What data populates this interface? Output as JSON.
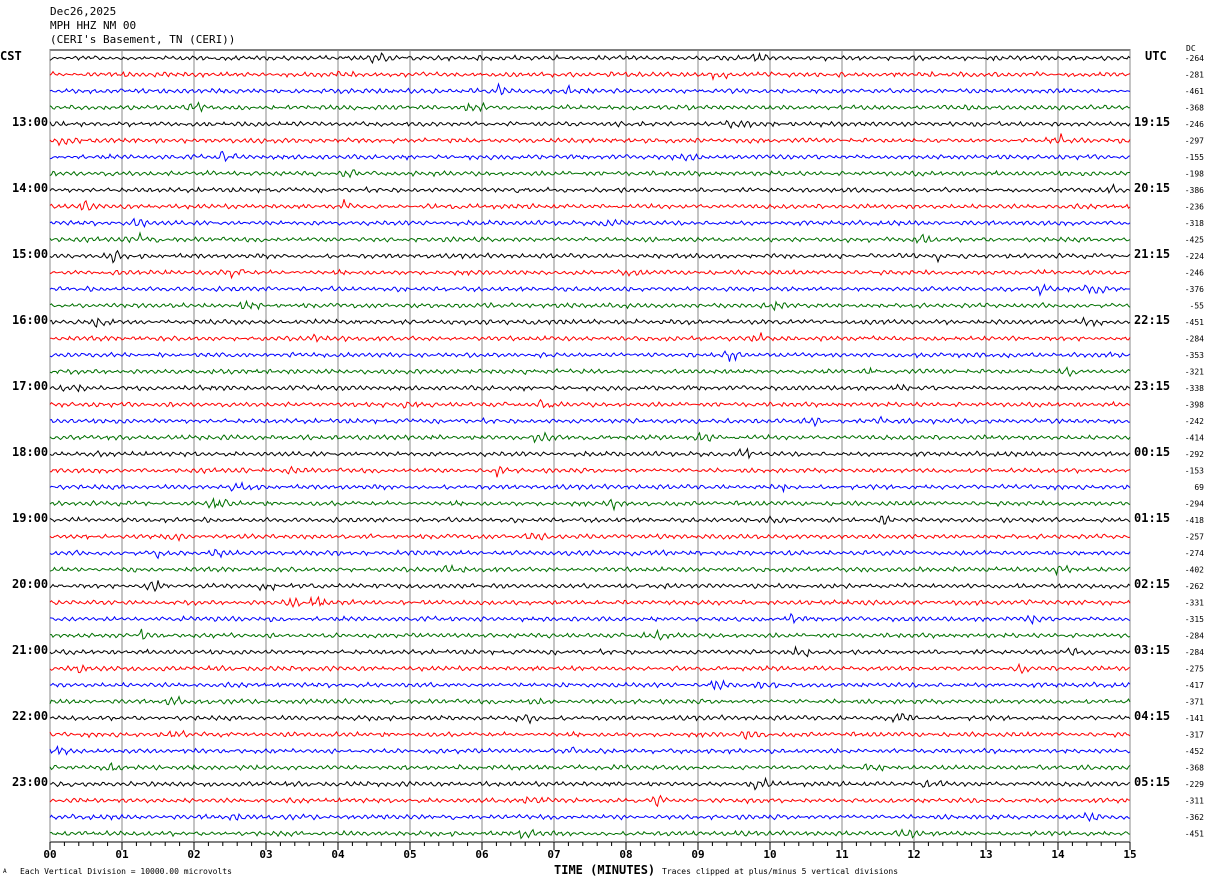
{
  "header": {
    "date": "Dec26,2025",
    "station": "MPH HHZ NM 00",
    "location": "(CERI's Basement, TN (CERI))"
  },
  "left_tz": "CST",
  "right_tz": "UTC",
  "dc_label": "DC",
  "footer": {
    "scale": "Each Vertical Division = 10000.00 microvolts",
    "xlabel": "TIME (MINUTES)",
    "clip": "Traces clipped at plus/minus 5 vertical divisions",
    "corner": "A"
  },
  "chart_data": {
    "type": "line",
    "title": "MPH HHZ NM 00 helicorder Dec26,2025",
    "xlabel": "TIME (MINUTES)",
    "xlim": [
      0,
      15
    ],
    "xticks": [
      "00",
      "01",
      "02",
      "03",
      "04",
      "05",
      "06",
      "07",
      "08",
      "09",
      "10",
      "11",
      "12",
      "13",
      "14",
      "15"
    ],
    "trace_colors": [
      "#000000",
      "#ff0000",
      "#0000ff",
      "#007000"
    ],
    "left_labels": [
      {
        "trace": 4,
        "text": "13:00"
      },
      {
        "trace": 8,
        "text": "14:00"
      },
      {
        "trace": 12,
        "text": "15:00"
      },
      {
        "trace": 16,
        "text": "16:00"
      },
      {
        "trace": 20,
        "text": "17:00"
      },
      {
        "trace": 24,
        "text": "18:00"
      },
      {
        "trace": 28,
        "text": "19:00"
      },
      {
        "trace": 32,
        "text": "20:00"
      },
      {
        "trace": 36,
        "text": "21:00"
      },
      {
        "trace": 40,
        "text": "22:00"
      },
      {
        "trace": 44,
        "text": "23:00"
      }
    ],
    "right_labels": [
      {
        "trace": 4,
        "text": "19:15"
      },
      {
        "trace": 8,
        "text": "20:15"
      },
      {
        "trace": 12,
        "text": "21:15"
      },
      {
        "trace": 16,
        "text": "22:15"
      },
      {
        "trace": 20,
        "text": "23:15"
      },
      {
        "trace": 24,
        "text": "00:15"
      },
      {
        "trace": 28,
        "text": "01:15"
      },
      {
        "trace": 32,
        "text": "02:15"
      },
      {
        "trace": 36,
        "text": "03:15"
      },
      {
        "trace": 40,
        "text": "04:15"
      },
      {
        "trace": 44,
        "text": "05:15"
      }
    ],
    "dc_offsets": [
      -264,
      -281,
      -461,
      -368,
      -246,
      -297,
      -155,
      -198,
      -386,
      -236,
      -318,
      -425,
      -224,
      -246,
      -376,
      -55,
      -451,
      -284,
      -353,
      -321,
      -338,
      -398,
      -242,
      -414,
      -292,
      -153,
      69,
      -294,
      -418,
      -257,
      -274,
      -402,
      -262,
      -331,
      -315,
      -284,
      -284,
      -275,
      -417,
      -371,
      -141,
      -317,
      -452,
      -368,
      -229,
      -311,
      -362,
      -451
    ]
  }
}
